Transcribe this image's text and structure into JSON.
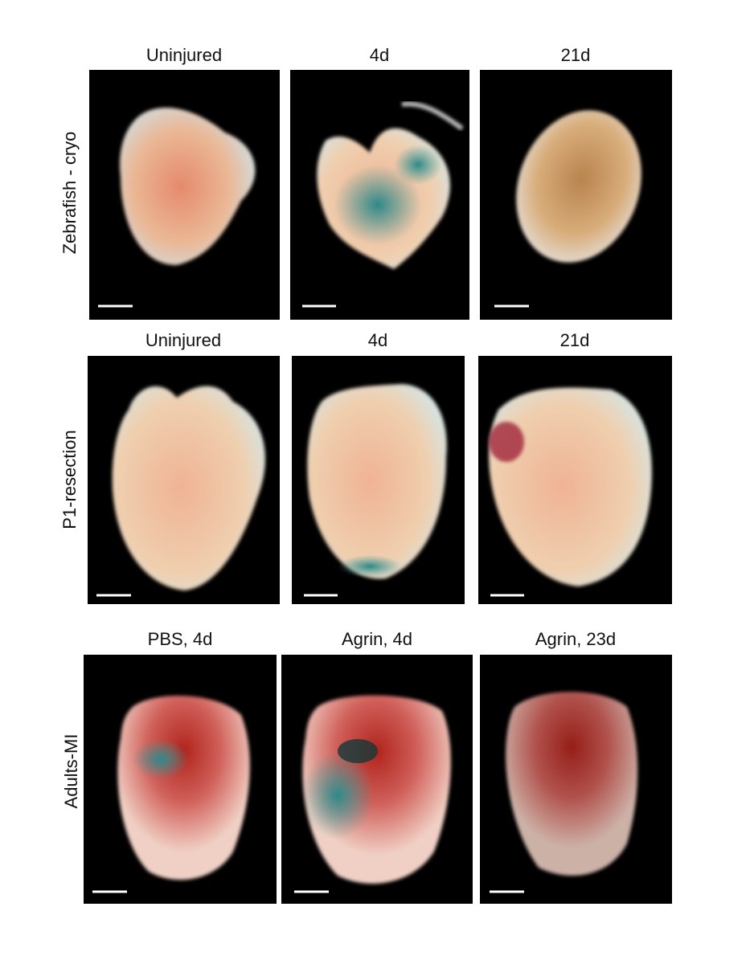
{
  "rows": [
    {
      "label": "Zebrafish - cryo",
      "panels": [
        {
          "title": "Uninjured"
        },
        {
          "title": "4d"
        },
        {
          "title": "21d"
        }
      ]
    },
    {
      "label": "P1-resection",
      "panels": [
        {
          "title": "Uninjured"
        },
        {
          "title": "4d"
        },
        {
          "title": "21d"
        }
      ]
    },
    {
      "label": "Adults-MI",
      "panels": [
        {
          "title": "PBS, 4d"
        },
        {
          "title": "Agrin, 4d"
        },
        {
          "title": "Agrin, 23d"
        }
      ]
    }
  ]
}
